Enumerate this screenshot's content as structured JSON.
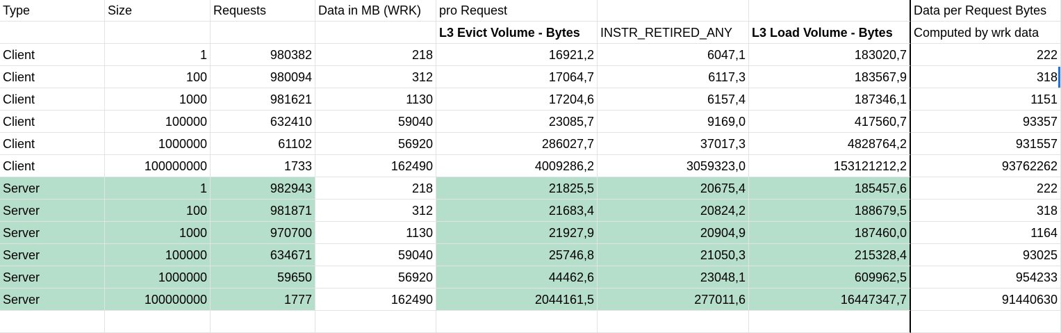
{
  "header_row_1": [
    "Type",
    "Size",
    "Requests",
    "Data in MB (WRK)",
    "pro Request",
    "",
    "",
    "Data per Request Bytes"
  ],
  "header_row_2": [
    "",
    "",
    "",
    "",
    "L3 Evict Volume - Bytes",
    "INSTR_RETIRED_ANY",
    "L3 Load Volume - Bytes",
    "Computed by wrk data"
  ],
  "rows": [
    {
      "type": "Client",
      "size": "1",
      "requests": "980382",
      "data_mb": "218",
      "l3_evict": "16921,2",
      "instr": "6047,1",
      "l3_load": "183020,7",
      "data_per_req": "222"
    },
    {
      "type": "Client",
      "size": "100",
      "requests": "980094",
      "data_mb": "312",
      "l3_evict": "17064,7",
      "instr": "6117,3",
      "l3_load": "183567,9",
      "data_per_req": "318"
    },
    {
      "type": "Client",
      "size": "1000",
      "requests": "981621",
      "data_mb": "1130",
      "l3_evict": "17204,6",
      "instr": "6157,4",
      "l3_load": "187346,1",
      "data_per_req": "1151"
    },
    {
      "type": "Client",
      "size": "100000",
      "requests": "632410",
      "data_mb": "59040",
      "l3_evict": "23085,7",
      "instr": "9169,0",
      "l3_load": "417560,7",
      "data_per_req": "93357"
    },
    {
      "type": "Client",
      "size": "1000000",
      "requests": "61102",
      "data_mb": "56920",
      "l3_evict": "286027,7",
      "instr": "37017,3",
      "l3_load": "4828764,2",
      "data_per_req": "931557"
    },
    {
      "type": "Client",
      "size": "100000000",
      "requests": "1733",
      "data_mb": "162490",
      "l3_evict": "4009286,2",
      "instr": "3059323,0",
      "l3_load": "153121212,2",
      "data_per_req": "93762262"
    },
    {
      "type": "Server",
      "size": "1",
      "requests": "982943",
      "data_mb": "218",
      "l3_evict": "21825,5",
      "instr": "20675,4",
      "l3_load": "185457,6",
      "data_per_req": "222"
    },
    {
      "type": "Server",
      "size": "100",
      "requests": "981871",
      "data_mb": "312",
      "l3_evict": "21683,4",
      "instr": "20824,2",
      "l3_load": "188679,5",
      "data_per_req": "318"
    },
    {
      "type": "Server",
      "size": "1000",
      "requests": "970700",
      "data_mb": "1130",
      "l3_evict": "21927,9",
      "instr": "20904,9",
      "l3_load": "187460,0",
      "data_per_req": "1164"
    },
    {
      "type": "Server",
      "size": "100000",
      "requests": "634671",
      "data_mb": "59040",
      "l3_evict": "25746,8",
      "instr": "21050,3",
      "l3_load": "215328,4",
      "data_per_req": "93025"
    },
    {
      "type": "Server",
      "size": "1000000",
      "requests": "59650",
      "data_mb": "56920",
      "l3_evict": "44462,6",
      "instr": "23048,1",
      "l3_load": "609962,5",
      "data_per_req": "954233"
    },
    {
      "type": "Server",
      "size": "100000000",
      "requests": "1777",
      "data_mb": "162490",
      "l3_evict": "2044161,5",
      "instr": "277011,6",
      "l3_load": "16447347,7",
      "data_per_req": "91440630"
    }
  ],
  "colors": {
    "server_fill": "#b6dfcb",
    "grid_line": "#e2e3e3",
    "separator": "#000000",
    "selection": "#1a73e8"
  }
}
